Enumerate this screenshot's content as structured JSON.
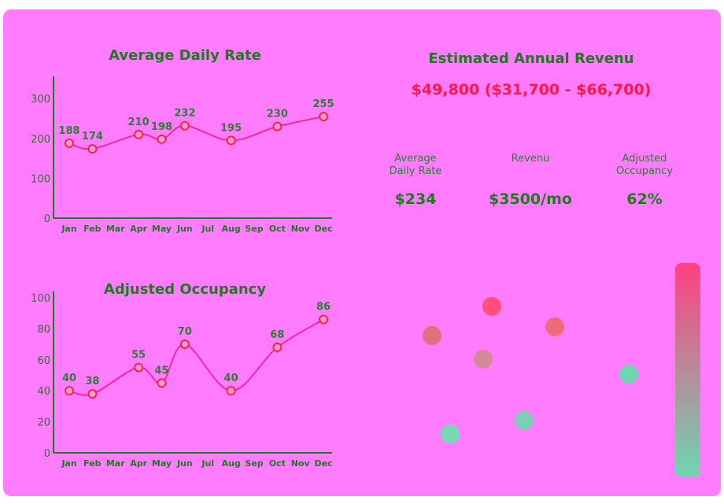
{
  "colors": {
    "background": "#ff7bff",
    "title": "#1f7a1f",
    "line": "#ff1f8e",
    "point": "#ff1744",
    "band": "#ff9bd8",
    "gradient_top": "#ff4081",
    "gradient_bottom": "#6fd6b0"
  },
  "summary": {
    "title": "Estimated Annual Revenu",
    "range": "$49,800 ($31,700 - $66,700)",
    "stats": [
      {
        "label": "Average\nDaily Rate",
        "value": "$234"
      },
      {
        "label": "Revenu",
        "value": "$3500/mo"
      },
      {
        "label": "Adjusted\nOccupancy",
        "value": "62%"
      }
    ]
  },
  "chart_data": [
    {
      "type": "line",
      "title": "Average Daily Rate",
      "x": [
        "Jan",
        "Feb",
        "Mar",
        "Apr",
        "May",
        "Jun",
        "Jul",
        "Aug",
        "Sep",
        "Oct",
        "Nov",
        "Dec"
      ],
      "points": [
        {
          "month": "Jan",
          "value": 188
        },
        {
          "month": "Feb",
          "value": 174
        },
        {
          "month": "Apr",
          "value": 210
        },
        {
          "month": "May",
          "value": 198
        },
        {
          "month": "Jun",
          "value": 232
        },
        {
          "month": "Aug",
          "value": 195
        },
        {
          "month": "Oct",
          "value": 230
        },
        {
          "month": "Dec",
          "value": 255
        }
      ],
      "yticks": [
        0,
        100,
        200,
        300
      ],
      "ylim": [
        0,
        340
      ],
      "band": true
    },
    {
      "type": "line",
      "title": "Adjusted Occupancy",
      "x": [
        "Jan",
        "Feb",
        "Mar",
        "Apr",
        "May",
        "Jun",
        "Jul",
        "Aug",
        "Sep",
        "Oct",
        "Nov",
        "Dec"
      ],
      "points": [
        {
          "month": "Jan",
          "value": 40
        },
        {
          "month": "Feb",
          "value": 38
        },
        {
          "month": "Apr",
          "value": 55
        },
        {
          "month": "May",
          "value": 45
        },
        {
          "month": "Jun",
          "value": 70
        },
        {
          "month": "Aug",
          "value": 40
        },
        {
          "month": "Oct",
          "value": 68
        },
        {
          "month": "Dec",
          "value": 86
        }
      ],
      "yticks": [
        0,
        20,
        40,
        60,
        80,
        100
      ],
      "ylim": [
        0,
        100
      ],
      "band": false
    },
    {
      "type": "scatter",
      "title": "",
      "bubbles": [
        {
          "color": "#ff4f7a"
        },
        {
          "color": "#f06a78"
        },
        {
          "color": "#e0707c"
        },
        {
          "color": "#d08a98"
        },
        {
          "color": "#6fd6b0"
        },
        {
          "color": "#7ad0b2"
        },
        {
          "color": "#78d8b4"
        }
      ]
    }
  ]
}
